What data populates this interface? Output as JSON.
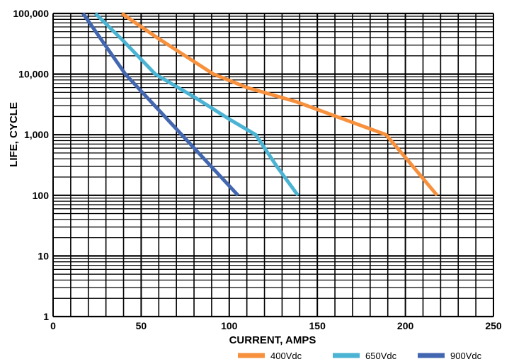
{
  "chart_data": {
    "type": "line",
    "title": "",
    "xlabel": "CURRENT, AMPS",
    "ylabel": "LIFE, CYCLE",
    "xlim": [
      0,
      250
    ],
    "ylim": [
      1,
      100000
    ],
    "y_scale": "log",
    "grid": true,
    "legend_position": "bottom",
    "x_ticks": [
      {
        "value": 0,
        "label": "0"
      },
      {
        "value": 50,
        "label": "50"
      },
      {
        "value": 100,
        "label": "100"
      },
      {
        "value": 150,
        "label": "150"
      },
      {
        "value": 200,
        "label": "200"
      },
      {
        "value": 250,
        "label": "250"
      }
    ],
    "y_ticks": [
      {
        "value": 1,
        "label": "1"
      },
      {
        "value": 10,
        "label": "10"
      },
      {
        "value": 100,
        "label": "100"
      },
      {
        "value": 1000,
        "label": "1,000"
      },
      {
        "value": 10000,
        "label": "10,000"
      },
      {
        "value": 100000,
        "label": "100,000"
      }
    ],
    "series": [
      {
        "name": "400Vdc",
        "color": "#f7913d",
        "points": [
          [
            39,
            100000
          ],
          [
            59,
            40000
          ],
          [
            91,
            10000
          ],
          [
            110,
            6000
          ],
          [
            138,
            3500
          ],
          [
            165,
            1800
          ],
          [
            189,
            1000
          ],
          [
            200,
            420
          ],
          [
            218,
            100
          ]
        ]
      },
      {
        "name": "650Vdc",
        "color": "#4bb3d3",
        "points": [
          [
            24,
            100000
          ],
          [
            40,
            35000
          ],
          [
            58,
            10000
          ],
          [
            80,
            4200
          ],
          [
            100,
            1800
          ],
          [
            115,
            1000
          ],
          [
            127,
            300
          ],
          [
            139,
            100
          ]
        ]
      },
      {
        "name": "900Vdc",
        "color": "#4267b0",
        "points": [
          [
            17,
            100000
          ],
          [
            41,
            10000
          ],
          [
            73,
            1000
          ],
          [
            105,
            100
          ]
        ]
      }
    ]
  }
}
